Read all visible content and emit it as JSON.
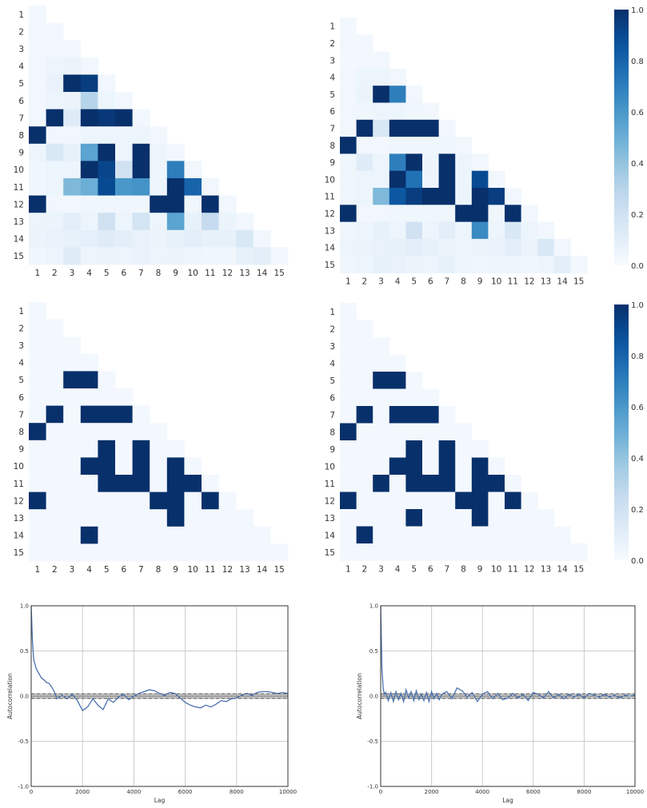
{
  "chart_data": [
    {
      "type": "heatmap",
      "panel": "top-left",
      "triangle": "lower",
      "row_labels": [
        "1",
        "2",
        "3",
        "4",
        "5",
        "6",
        "7",
        "8",
        "9",
        "10",
        "11",
        "12",
        "13",
        "14",
        "15"
      ],
      "col_labels": [
        "1",
        "2",
        "3",
        "4",
        "5",
        "6",
        "7",
        "8",
        "9",
        "10",
        "11",
        "12",
        "13",
        "14",
        "15"
      ],
      "colormap": "Blues",
      "vmin": 0.0,
      "vmax": 1.0,
      "values": [
        [
          0.02
        ],
        [
          0.03,
          0.03
        ],
        [
          0.02,
          0.03,
          0.03
        ],
        [
          0.03,
          0.05,
          0.06,
          0.03
        ],
        [
          0.03,
          0.07,
          1.0,
          0.95,
          0.03
        ],
        [
          0.03,
          0.05,
          0.06,
          0.3,
          0.05,
          0.03
        ],
        [
          0.03,
          1.0,
          0.12,
          1.0,
          0.97,
          1.0,
          0.03
        ],
        [
          1.0,
          0.03,
          0.03,
          0.05,
          0.05,
          0.05,
          0.05,
          0.03
        ],
        [
          0.05,
          0.15,
          0.08,
          0.55,
          1.0,
          0.05,
          1.0,
          0.05,
          0.03
        ],
        [
          0.04,
          0.05,
          0.05,
          1.0,
          0.92,
          0.2,
          1.0,
          0.05,
          0.7,
          0.03
        ],
        [
          0.04,
          0.05,
          0.45,
          0.5,
          0.9,
          0.6,
          0.62,
          0.05,
          1.0,
          0.8,
          0.03
        ],
        [
          1.0,
          0.03,
          0.03,
          0.04,
          0.04,
          0.04,
          0.04,
          1.0,
          1.0,
          0.04,
          1.0,
          0.03
        ],
        [
          0.05,
          0.06,
          0.1,
          0.05,
          0.2,
          0.05,
          0.18,
          0.05,
          0.55,
          0.08,
          0.25,
          0.06,
          0.03
        ],
        [
          0.06,
          0.07,
          0.08,
          0.09,
          0.12,
          0.1,
          0.07,
          0.06,
          0.08,
          0.1,
          0.08,
          0.08,
          0.15,
          0.03
        ],
        [
          0.04,
          0.05,
          0.12,
          0.05,
          0.06,
          0.05,
          0.07,
          0.05,
          0.06,
          0.05,
          0.04,
          0.04,
          0.08,
          0.1,
          0.03
        ]
      ]
    },
    {
      "type": "heatmap",
      "panel": "top-right",
      "triangle": "lower",
      "row_labels": [
        "1",
        "2",
        "3",
        "4",
        "5",
        "6",
        "7",
        "8",
        "9",
        "10",
        "11",
        "12",
        "13",
        "14",
        "15"
      ],
      "col_labels": [
        "1",
        "2",
        "3",
        "4",
        "5",
        "6",
        "7",
        "8",
        "9",
        "10",
        "11",
        "12",
        "13",
        "14",
        "15"
      ],
      "colormap": "Blues",
      "vmin": 0.0,
      "vmax": 1.0,
      "colorbar_ticks": [
        "0.0",
        "0.2",
        "0.4",
        "0.6",
        "0.8",
        "1.0"
      ],
      "values": [
        [
          0.02
        ],
        [
          0.03,
          0.03
        ],
        [
          0.02,
          0.03,
          0.03
        ],
        [
          0.03,
          0.05,
          0.05,
          0.03
        ],
        [
          0.03,
          0.06,
          1.0,
          0.7,
          0.03
        ],
        [
          0.03,
          0.04,
          0.05,
          0.05,
          0.04,
          0.03
        ],
        [
          0.03,
          1.0,
          0.15,
          1.0,
          1.0,
          1.0,
          0.03
        ],
        [
          1.0,
          0.03,
          0.03,
          0.04,
          0.04,
          0.04,
          0.04,
          0.03
        ],
        [
          0.04,
          0.12,
          0.05,
          0.7,
          1.0,
          0.05,
          1.0,
          0.05,
          0.03
        ],
        [
          0.04,
          0.05,
          0.05,
          1.0,
          0.75,
          0.05,
          1.0,
          0.05,
          0.9,
          0.03
        ],
        [
          0.04,
          0.05,
          0.45,
          0.85,
          0.95,
          1.0,
          1.0,
          0.05,
          1.0,
          0.95,
          0.03
        ],
        [
          1.0,
          0.03,
          0.03,
          0.04,
          0.04,
          0.04,
          0.04,
          1.0,
          1.0,
          0.04,
          1.0,
          0.03
        ],
        [
          0.04,
          0.05,
          0.08,
          0.05,
          0.2,
          0.05,
          0.1,
          0.05,
          0.65,
          0.05,
          0.15,
          0.05,
          0.03
        ],
        [
          0.05,
          0.06,
          0.07,
          0.08,
          0.1,
          0.08,
          0.06,
          0.05,
          0.06,
          0.07,
          0.1,
          0.06,
          0.15,
          0.03
        ],
        [
          0.04,
          0.05,
          0.08,
          0.07,
          0.06,
          0.05,
          0.08,
          0.05,
          0.04,
          0.05,
          0.05,
          0.04,
          0.05,
          0.1,
          0.03
        ]
      ]
    },
    {
      "type": "heatmap",
      "panel": "middle-left",
      "triangle": "lower",
      "row_labels": [
        "1",
        "2",
        "3",
        "4",
        "5",
        "6",
        "7",
        "8",
        "9",
        "10",
        "11",
        "12",
        "13",
        "14",
        "15"
      ],
      "col_labels": [
        "1",
        "2",
        "3",
        "4",
        "5",
        "6",
        "7",
        "8",
        "9",
        "10",
        "11",
        "12",
        "13",
        "14",
        "15"
      ],
      "colormap": "Blues",
      "vmin": 0.0,
      "vmax": 1.0,
      "values": [
        [
          0.02
        ],
        [
          0.02,
          0.02
        ],
        [
          0.02,
          0.02,
          0.02
        ],
        [
          0.02,
          0.02,
          0.02,
          0.02
        ],
        [
          0.02,
          0.02,
          1.0,
          1.0,
          0.02
        ],
        [
          0.02,
          0.02,
          0.02,
          0.02,
          0.02,
          0.02
        ],
        [
          0.02,
          1.0,
          0.02,
          1.0,
          1.0,
          1.0,
          0.02
        ],
        [
          1.0,
          0.02,
          0.02,
          0.02,
          0.02,
          0.02,
          0.02,
          0.02
        ],
        [
          0.02,
          0.02,
          0.02,
          0.02,
          1.0,
          0.02,
          1.0,
          0.02,
          0.02
        ],
        [
          0.02,
          0.02,
          0.02,
          1.0,
          1.0,
          0.02,
          1.0,
          0.02,
          1.0,
          0.02
        ],
        [
          0.02,
          0.02,
          0.02,
          0.02,
          1.0,
          1.0,
          1.0,
          0.02,
          1.0,
          1.0,
          0.02
        ],
        [
          1.0,
          0.02,
          0.02,
          0.02,
          0.02,
          0.02,
          0.02,
          1.0,
          1.0,
          0.02,
          1.0,
          0.02
        ],
        [
          0.02,
          0.02,
          0.02,
          0.02,
          0.02,
          0.02,
          0.02,
          0.02,
          1.0,
          0.02,
          0.02,
          0.02,
          0.02
        ],
        [
          0.02,
          0.02,
          0.02,
          1.0,
          0.02,
          0.02,
          0.02,
          0.02,
          0.02,
          0.02,
          0.02,
          0.02,
          0.02,
          0.02
        ],
        [
          0.02,
          0.02,
          0.02,
          0.02,
          0.02,
          0.02,
          0.02,
          0.02,
          0.02,
          0.02,
          0.02,
          0.02,
          0.02,
          0.02,
          0.02
        ]
      ]
    },
    {
      "type": "heatmap",
      "panel": "middle-right",
      "triangle": "lower",
      "row_labels": [
        "1",
        "2",
        "3",
        "4",
        "5",
        "6",
        "7",
        "8",
        "9",
        "10",
        "11",
        "12",
        "13",
        "14",
        "15"
      ],
      "col_labels": [
        "1",
        "2",
        "3",
        "4",
        "5",
        "6",
        "7",
        "8",
        "9",
        "10",
        "11",
        "12",
        "13",
        "14",
        "15"
      ],
      "colormap": "Blues",
      "vmin": 0.0,
      "vmax": 1.0,
      "colorbar_ticks": [
        "0.0",
        "0.2",
        "0.4",
        "0.6",
        "0.8",
        "1.0"
      ],
      "values": [
        [
          0.02
        ],
        [
          0.02,
          0.02
        ],
        [
          0.02,
          0.02,
          0.02
        ],
        [
          0.02,
          0.02,
          0.02,
          0.02
        ],
        [
          0.02,
          0.02,
          1.0,
          1.0,
          0.02
        ],
        [
          0.02,
          0.02,
          0.02,
          0.02,
          0.02,
          0.02
        ],
        [
          0.02,
          1.0,
          0.02,
          1.0,
          1.0,
          1.0,
          0.02
        ],
        [
          1.0,
          0.02,
          0.02,
          0.02,
          0.02,
          0.02,
          0.02,
          0.02
        ],
        [
          0.02,
          0.02,
          0.02,
          0.02,
          1.0,
          0.02,
          1.0,
          0.02,
          0.02
        ],
        [
          0.02,
          0.02,
          0.02,
          1.0,
          1.0,
          0.02,
          1.0,
          0.02,
          1.0,
          0.02
        ],
        [
          0.02,
          0.02,
          1.0,
          0.02,
          1.0,
          1.0,
          1.0,
          0.02,
          1.0,
          1.0,
          0.02
        ],
        [
          1.0,
          0.02,
          0.02,
          0.02,
          0.02,
          0.02,
          0.02,
          1.0,
          1.0,
          0.02,
          1.0,
          0.02
        ],
        [
          0.02,
          0.02,
          0.02,
          0.02,
          1.0,
          0.02,
          0.02,
          0.02,
          1.0,
          0.02,
          0.02,
          0.02,
          0.02
        ],
        [
          0.02,
          1.0,
          0.02,
          0.02,
          0.02,
          0.02,
          0.02,
          0.02,
          0.02,
          0.02,
          0.02,
          0.02,
          0.02,
          0.02
        ],
        [
          0.02,
          0.02,
          0.02,
          0.02,
          0.02,
          0.02,
          0.02,
          0.02,
          0.02,
          0.02,
          0.02,
          0.02,
          0.02,
          0.02,
          0.02
        ]
      ]
    },
    {
      "type": "line",
      "panel": "bottom-left",
      "xlabel": "Lag",
      "ylabel": "Autocorrelation",
      "xlim": [
        0,
        10000
      ],
      "ylim": [
        -1.0,
        1.0
      ],
      "xticks": [
        "0",
        "2000",
        "4000",
        "6000",
        "8000",
        "10000"
      ],
      "yticks": [
        "1.0",
        "0.5",
        "0.0",
        "-0.5",
        "-1.0"
      ],
      "grid": true,
      "confidence_band": [
        -0.02,
        0.02
      ],
      "confidence_band_outer": [
        -0.026,
        0.026
      ],
      "x": [
        0,
        50,
        100,
        200,
        300,
        400,
        500,
        600,
        700,
        800,
        900,
        1000,
        1200,
        1400,
        1600,
        1800,
        2000,
        2200,
        2400,
        2600,
        2800,
        3000,
        3200,
        3400,
        3600,
        3800,
        4000,
        4200,
        4400,
        4600,
        4800,
        5000,
        5200,
        5400,
        5600,
        5800,
        6000,
        6200,
        6400,
        6600,
        6800,
        7000,
        7200,
        7400,
        7600,
        7800,
        8000,
        8200,
        8400,
        8600,
        8800,
        9000,
        9200,
        9400,
        9600,
        9800,
        10000
      ],
      "y": [
        1.0,
        0.6,
        0.4,
        0.3,
        0.25,
        0.2,
        0.18,
        0.15,
        0.14,
        0.1,
        0.05,
        -0.03,
        0.01,
        -0.03,
        0.02,
        -0.05,
        -0.16,
        -0.12,
        -0.03,
        -0.1,
        -0.15,
        -0.03,
        -0.07,
        -0.01,
        0.02,
        -0.04,
        0.0,
        0.03,
        0.05,
        0.07,
        0.06,
        0.03,
        0.01,
        0.04,
        0.03,
        -0.02,
        -0.07,
        -0.1,
        -0.12,
        -0.13,
        -0.1,
        -0.12,
        -0.09,
        -0.05,
        -0.06,
        -0.03,
        -0.02,
        0.01,
        0.03,
        0.01,
        0.04,
        0.05,
        0.05,
        0.04,
        0.03,
        0.04,
        0.03
      ]
    },
    {
      "type": "line",
      "panel": "bottom-right",
      "xlabel": "Lag",
      "ylabel": "Autocorrelation",
      "xlim": [
        0,
        10000
      ],
      "ylim": [
        -1.0,
        1.0
      ],
      "xticks": [
        "0",
        "2000",
        "4000",
        "6000",
        "8000",
        "10000"
      ],
      "yticks": [
        "1.0",
        "0.5",
        "0.0",
        "-0.5",
        "-1.0"
      ],
      "grid": true,
      "confidence_band": [
        -0.02,
        0.02
      ],
      "confidence_band_outer": [
        -0.026,
        0.026
      ],
      "x": [
        0,
        50,
        100,
        150,
        200,
        300,
        400,
        500,
        600,
        700,
        800,
        900,
        1000,
        1100,
        1200,
        1300,
        1400,
        1500,
        1600,
        1700,
        1800,
        1900,
        2000,
        2100,
        2200,
        2300,
        2400,
        2600,
        2800,
        3000,
        3200,
        3400,
        3600,
        3800,
        4000,
        4200,
        4400,
        4600,
        4800,
        5000,
        5200,
        5400,
        5600,
        5800,
        6000,
        6200,
        6400,
        6600,
        6800,
        7000,
        7200,
        7400,
        7600,
        7800,
        8000,
        8200,
        8400,
        8600,
        8800,
        9000,
        9200,
        9400,
        9600,
        9800,
        10000
      ],
      "y": [
        1.0,
        0.3,
        0.08,
        0.02,
        0.04,
        -0.05,
        0.04,
        -0.06,
        0.05,
        -0.04,
        0.03,
        -0.06,
        0.07,
        -0.02,
        0.05,
        -0.05,
        0.06,
        -0.04,
        0.02,
        -0.05,
        0.04,
        -0.06,
        0.05,
        -0.03,
        0.03,
        -0.04,
        0.02,
        0.05,
        -0.03,
        0.09,
        0.06,
        -0.01,
        0.04,
        -0.06,
        0.02,
        0.05,
        -0.03,
        0.03,
        -0.04,
        -0.02,
        0.03,
        -0.02,
        0.02,
        -0.05,
        0.04,
        0.02,
        -0.02,
        0.05,
        -0.02,
        0.02,
        -0.03,
        0.02,
        -0.01,
        0.02,
        -0.02,
        0.03,
        0.01,
        -0.01,
        0.02,
        -0.01,
        0.01,
        -0.02,
        0.01,
        0.0,
        0.01
      ]
    }
  ]
}
